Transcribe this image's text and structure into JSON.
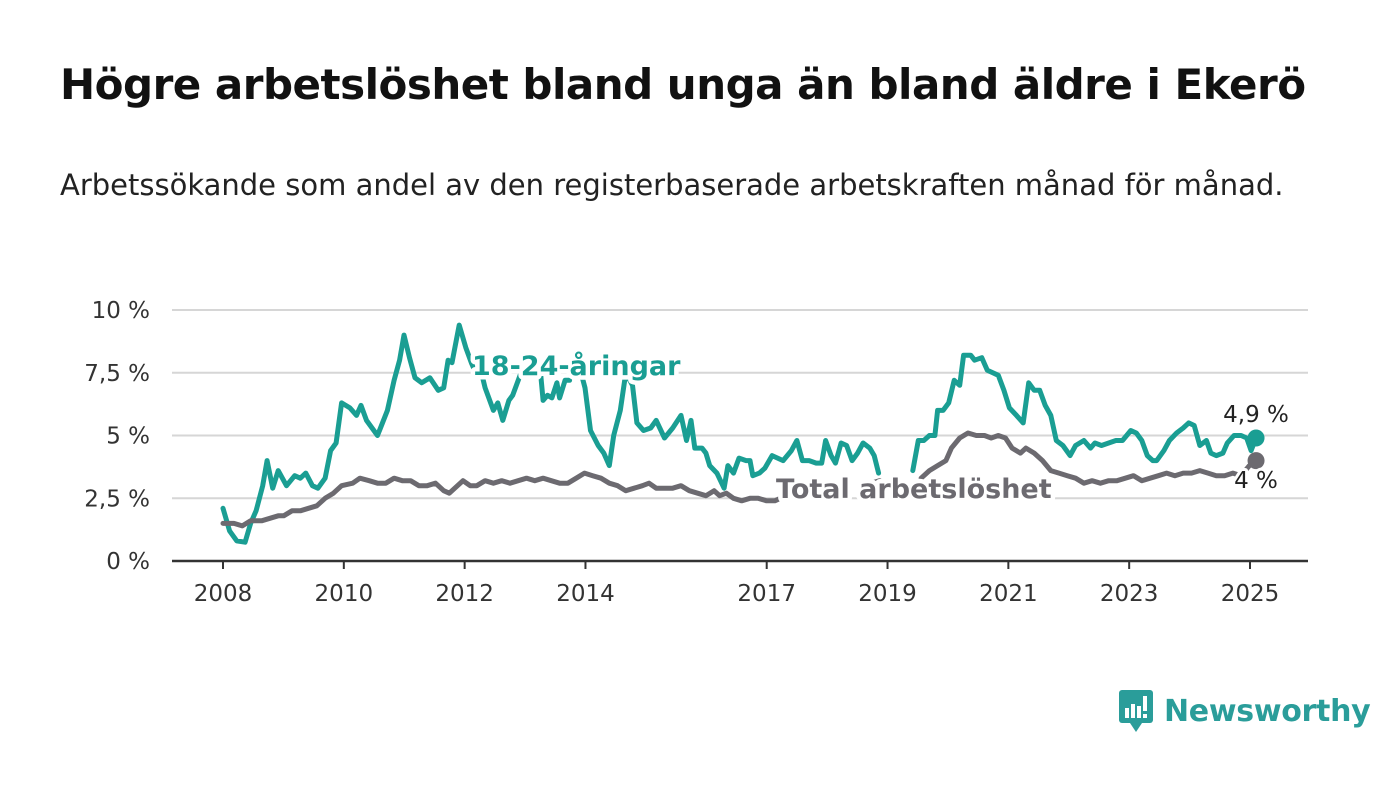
{
  "title": "Högre arbetslöshet bland unga än bland äldre i Ekerö",
  "subtitle": "Arbetssökande som andel av den registerbaserade arbetskraften månad för månad.",
  "brand": {
    "name": "Newsworthy",
    "icon": "newsworthy-logo-icon",
    "color": "#2a9d9a"
  },
  "chart_data": {
    "type": "line",
    "title": "",
    "xlabel": "",
    "ylabel": "",
    "ylim": [
      0,
      10
    ],
    "xlim": [
      2007.4,
      2025.9
    ],
    "y_ticks": [
      {
        "value": 0,
        "label": "0 %"
      },
      {
        "value": 2.5,
        "label": "2,5 %"
      },
      {
        "value": 5,
        "label": "5 %"
      },
      {
        "value": 7.5,
        "label": "7,5 %"
      },
      {
        "value": 10,
        "label": "10 %"
      }
    ],
    "x_ticks": [
      {
        "value": 2008,
        "label": "2008"
      },
      {
        "value": 2010,
        "label": "2010"
      },
      {
        "value": 2012,
        "label": "2012"
      },
      {
        "value": 2014,
        "label": "2014"
      },
      {
        "value": 2017,
        "label": "2017"
      },
      {
        "value": 2019,
        "label": "2019"
      },
      {
        "value": 2021,
        "label": "2021"
      },
      {
        "value": 2023,
        "label": "2023"
      },
      {
        "value": 2025,
        "label": "2025"
      }
    ],
    "grid": true,
    "series": [
      {
        "name": "18-24-åringar",
        "color": "#1a9e93",
        "end_label": "4,9 %",
        "points": [
          [
            2008.0,
            2.1
          ],
          [
            2008.12,
            1.2
          ],
          [
            2008.25,
            0.8
          ],
          [
            2008.4,
            0.75
          ],
          [
            2008.5,
            1.5
          ],
          [
            2008.6,
            2.0
          ],
          [
            2008.72,
            3.0
          ],
          [
            2008.8,
            4.0
          ],
          [
            2008.9,
            2.9
          ],
          [
            2009.0,
            3.6
          ],
          [
            2009.15,
            3.0
          ],
          [
            2009.3,
            3.4
          ],
          [
            2009.4,
            3.3
          ],
          [
            2009.5,
            3.5
          ],
          [
            2009.62,
            3.0
          ],
          [
            2009.72,
            2.9
          ],
          [
            2009.85,
            3.3
          ],
          [
            2009.95,
            4.4
          ],
          [
            2010.05,
            4.7
          ],
          [
            2010.15,
            6.3
          ],
          [
            2010.3,
            6.1
          ],
          [
            2010.42,
            5.8
          ],
          [
            2010.5,
            6.2
          ],
          [
            2010.6,
            5.6
          ],
          [
            2010.8,
            5.0
          ],
          [
            2010.98,
            6.0
          ],
          [
            2011.1,
            7.2
          ],
          [
            2011.2,
            8.0
          ],
          [
            2011.28,
            9.0
          ],
          [
            2011.38,
            8.1
          ],
          [
            2011.48,
            7.3
          ],
          [
            2011.6,
            7.1
          ],
          [
            2011.75,
            7.3
          ],
          [
            2011.9,
            6.8
          ],
          [
            2012.0,
            6.9
          ],
          [
            2012.08,
            8.0
          ],
          [
            2012.15,
            7.9
          ],
          [
            2012.28,
            9.4
          ],
          [
            2012.4,
            8.5
          ],
          [
            2012.5,
            7.9
          ],
          [
            2012.58,
            7.5
          ],
          [
            2012.65,
            7.8
          ],
          [
            2012.75,
            6.9
          ],
          [
            2012.9,
            6.0
          ],
          [
            2012.98,
            6.3
          ],
          [
            2013.07,
            5.6
          ],
          [
            2013.18,
            6.4
          ],
          [
            2013.25,
            6.6
          ],
          [
            2013.4,
            7.5
          ],
          null,
          [
            2013.75,
            7.6
          ],
          [
            2013.8,
            6.4
          ],
          [
            2013.88,
            6.6
          ],
          [
            2013.96,
            6.5
          ],
          [
            2014.05,
            7.1
          ],
          [
            2014.1,
            6.5
          ],
          [
            2014.2,
            7.2
          ],
          [
            2014.28,
            7.2
          ],
          null,
          [
            2014.5,
            7.4
          ],
          [
            2014.56,
            6.9
          ],
          [
            2014.66,
            5.2
          ],
          [
            2014.8,
            4.6
          ],
          [
            2014.9,
            4.3
          ],
          [
            2015.0,
            3.8
          ],
          [
            2015.08,
            5.0
          ],
          [
            2015.2,
            6.0
          ],
          [
            2015.3,
            7.5
          ],
          [
            2015.42,
            7.0
          ],
          [
            2015.5,
            5.5
          ],
          [
            2015.62,
            5.2
          ],
          [
            2015.75,
            5.3
          ],
          [
            2015.85,
            5.6
          ],
          [
            2016.0,
            4.9
          ],
          [
            2016.15,
            5.3
          ],
          [
            2016.3,
            5.8
          ],
          [
            2016.4,
            4.8
          ],
          [
            2016.48,
            5.6
          ],
          [
            2016.55,
            4.5
          ],
          [
            2016.68,
            4.5
          ],
          [
            2016.75,
            4.3
          ],
          [
            2016.82,
            3.8
          ],
          [
            2016.95,
            3.5
          ],
          [
            2017.08,
            2.9
          ],
          [
            2017.15,
            3.8
          ],
          [
            2017.25,
            3.5
          ],
          [
            2017.35,
            4.1
          ],
          [
            2017.48,
            4.0
          ],
          [
            2017.55,
            4.0
          ],
          [
            2017.6,
            3.4
          ],
          [
            2017.72,
            3.5
          ],
          [
            2017.82,
            3.7
          ],
          [
            2017.95,
            4.2
          ],
          [
            2018.05,
            4.1
          ],
          [
            2018.15,
            4.0
          ],
          [
            2018.3,
            4.4
          ],
          [
            2018.4,
            4.8
          ],
          [
            2018.5,
            4.0
          ],
          [
            2018.62,
            4.0
          ],
          [
            2018.75,
            3.9
          ],
          [
            2018.85,
            3.9
          ],
          [
            2018.92,
            4.8
          ],
          [
            2019.02,
            4.2
          ],
          [
            2019.1,
            3.9
          ],
          [
            2019.2,
            4.7
          ],
          [
            2019.3,
            4.6
          ],
          [
            2019.4,
            4.0
          ],
          [
            2019.5,
            4.3
          ],
          [
            2019.6,
            4.7
          ],
          [
            2019.72,
            4.5
          ],
          [
            2019.8,
            4.2
          ],
          [
            2019.88,
            3.5
          ],
          null,
          [
            2020.5,
            3.6
          ],
          [
            2020.6,
            4.8
          ],
          [
            2020.7,
            4.8
          ],
          [
            2020.8,
            5.0
          ],
          [
            2020.9,
            5.0
          ],
          [
            2020.95,
            6.0
          ],
          [
            2021.05,
            6.0
          ],
          [
            2021.15,
            6.3
          ],
          [
            2021.25,
            7.2
          ],
          [
            2021.35,
            7.0
          ],
          [
            2021.42,
            8.2
          ],
          [
            2021.55,
            8.2
          ],
          [
            2021.62,
            8.0
          ],
          [
            2021.75,
            8.1
          ],
          [
            2021.85,
            7.6
          ],
          [
            2021.95,
            7.5
          ],
          [
            2022.05,
            7.4
          ],
          [
            2022.15,
            6.8
          ],
          [
            2022.25,
            6.1
          ],
          [
            2022.38,
            5.8
          ],
          [
            2022.5,
            5.5
          ],
          [
            2022.6,
            7.1
          ],
          [
            2022.7,
            6.8
          ],
          [
            2022.8,
            6.8
          ],
          [
            2022.9,
            6.2
          ],
          [
            2023.0,
            5.8
          ],
          [
            2023.1,
            4.8
          ],
          [
            2023.22,
            4.6
          ],
          [
            2023.35,
            4.2
          ],
          [
            2023.45,
            4.6
          ],
          [
            2023.6,
            4.8
          ],
          [
            2023.72,
            4.5
          ],
          [
            2023.8,
            4.7
          ],
          [
            2023.92,
            4.6
          ],
          [
            2024.05,
            4.7
          ],
          [
            2024.18,
            4.8
          ],
          [
            2024.3,
            4.8
          ],
          [
            2024.45,
            5.2
          ],
          [
            2024.55,
            5.1
          ],
          [
            2024.65,
            4.8
          ],
          [
            2024.75,
            4.2
          ],
          [
            2024.85,
            4.0
          ],
          [
            2024.92,
            4.0
          ],
          [
            2025.05,
            4.4
          ],
          [
            2025.15,
            4.8
          ],
          [
            2025.28,
            5.1
          ],
          [
            2025.4,
            5.3
          ],
          [
            2025.5,
            5.5
          ],
          [
            2025.6,
            5.4
          ],
          [
            2025.7,
            4.6
          ],
          [
            2025.82,
            4.8
          ],
          [
            2025.9,
            4.3
          ],
          [
            2026.0,
            4.2
          ],
          [
            2026.12,
            4.3
          ],
          [
            2026.2,
            4.7
          ],
          [
            2026.32,
            5.0
          ],
          [
            2026.45,
            5.0
          ],
          [
            2026.55,
            4.9
          ],
          [
            2026.63,
            4.4
          ],
          [
            2026.72,
            4.9
          ]
        ]
      },
      {
        "name": "Total arbetslöshet",
        "color": "#6c6a70",
        "end_label": "4 %",
        "points": [
          [
            2008.0,
            1.5
          ],
          [
            2008.2,
            1.5
          ],
          [
            2008.35,
            1.4
          ],
          [
            2008.5,
            1.6
          ],
          [
            2008.7,
            1.6
          ],
          [
            2008.85,
            1.7
          ],
          [
            2009.0,
            1.8
          ],
          [
            2009.1,
            1.8
          ],
          [
            2009.25,
            2.0
          ],
          [
            2009.4,
            2.0
          ],
          [
            2009.55,
            2.1
          ],
          [
            2009.7,
            2.2
          ],
          [
            2009.85,
            2.5
          ],
          [
            2010.0,
            2.7
          ],
          [
            2010.15,
            3.0
          ],
          [
            2010.35,
            3.1
          ],
          [
            2010.48,
            3.3
          ],
          [
            2010.65,
            3.2
          ],
          [
            2010.8,
            3.1
          ],
          [
            2010.95,
            3.1
          ],
          [
            2011.1,
            3.3
          ],
          [
            2011.25,
            3.2
          ],
          [
            2011.4,
            3.2
          ],
          [
            2011.55,
            3.0
          ],
          [
            2011.7,
            3.0
          ],
          [
            2011.85,
            3.1
          ],
          [
            2012.0,
            2.8
          ],
          [
            2012.1,
            2.7
          ],
          [
            2012.25,
            3.0
          ],
          [
            2012.35,
            3.2
          ],
          [
            2012.48,
            3.0
          ],
          [
            2012.6,
            3.0
          ],
          [
            2012.75,
            3.2
          ],
          [
            2012.9,
            3.1
          ],
          [
            2013.05,
            3.2
          ],
          [
            2013.2,
            3.1
          ],
          [
            2013.35,
            3.2
          ],
          [
            2013.5,
            3.3
          ],
          [
            2013.65,
            3.2
          ],
          [
            2013.8,
            3.3
          ],
          [
            2013.95,
            3.2
          ],
          [
            2014.1,
            3.1
          ],
          [
            2014.25,
            3.1
          ],
          [
            2014.4,
            3.3
          ],
          [
            2014.55,
            3.5
          ],
          [
            2014.7,
            3.4
          ],
          [
            2014.85,
            3.3
          ],
          [
            2015.0,
            3.1
          ],
          [
            2015.15,
            3.0
          ],
          [
            2015.3,
            2.8
          ],
          [
            2015.45,
            2.9
          ],
          [
            2015.6,
            3.0
          ],
          [
            2015.72,
            3.1
          ],
          [
            2015.85,
            2.9
          ],
          [
            2016.0,
            2.9
          ],
          [
            2016.15,
            2.9
          ],
          [
            2016.3,
            3.0
          ],
          [
            2016.45,
            2.8
          ],
          [
            2016.6,
            2.7
          ],
          [
            2016.75,
            2.6
          ],
          [
            2016.9,
            2.8
          ],
          [
            2017.0,
            2.6
          ],
          [
            2017.12,
            2.7
          ],
          [
            2017.25,
            2.5
          ],
          [
            2017.4,
            2.4
          ],
          [
            2017.55,
            2.5
          ],
          [
            2017.7,
            2.5
          ],
          [
            2017.85,
            2.4
          ],
          [
            2018.0,
            2.4
          ],
          [
            2018.1,
            2.5
          ],
          null,
          [
            2019.75,
            3.1
          ],
          [
            2019.9,
            3.2
          ],
          null,
          [
            2020.65,
            3.3
          ],
          [
            2020.8,
            3.6
          ],
          [
            2020.95,
            3.8
          ],
          [
            2021.1,
            4.0
          ],
          [
            2021.2,
            4.5
          ],
          [
            2021.35,
            4.9
          ],
          [
            2021.5,
            5.1
          ],
          [
            2021.65,
            5.0
          ],
          [
            2021.8,
            5.0
          ],
          [
            2021.92,
            4.9
          ],
          [
            2022.05,
            5.0
          ],
          [
            2022.18,
            4.9
          ],
          [
            2022.3,
            4.5
          ],
          [
            2022.45,
            4.3
          ],
          [
            2022.55,
            4.5
          ],
          [
            2022.7,
            4.3
          ],
          [
            2022.85,
            4.0
          ],
          [
            2023.0,
            3.6
          ],
          [
            2023.15,
            3.5
          ],
          [
            2023.3,
            3.4
          ],
          [
            2023.45,
            3.3
          ],
          [
            2023.6,
            3.1
          ],
          [
            2023.75,
            3.2
          ],
          [
            2023.9,
            3.1
          ],
          [
            2024.05,
            3.2
          ],
          [
            2024.2,
            3.2
          ],
          [
            2024.35,
            3.3
          ],
          [
            2024.5,
            3.4
          ],
          [
            2024.65,
            3.2
          ],
          [
            2024.8,
            3.3
          ],
          [
            2024.95,
            3.4
          ],
          [
            2025.1,
            3.5
          ],
          [
            2025.25,
            3.4
          ],
          [
            2025.4,
            3.5
          ],
          [
            2025.55,
            3.5
          ],
          [
            2025.7,
            3.6
          ],
          [
            2025.85,
            3.5
          ],
          [
            2026.0,
            3.4
          ],
          [
            2026.15,
            3.4
          ],
          [
            2026.3,
            3.5
          ],
          [
            2026.45,
            3.4
          ],
          [
            2026.6,
            3.8
          ],
          [
            2026.72,
            4.0
          ]
        ]
      }
    ]
  }
}
